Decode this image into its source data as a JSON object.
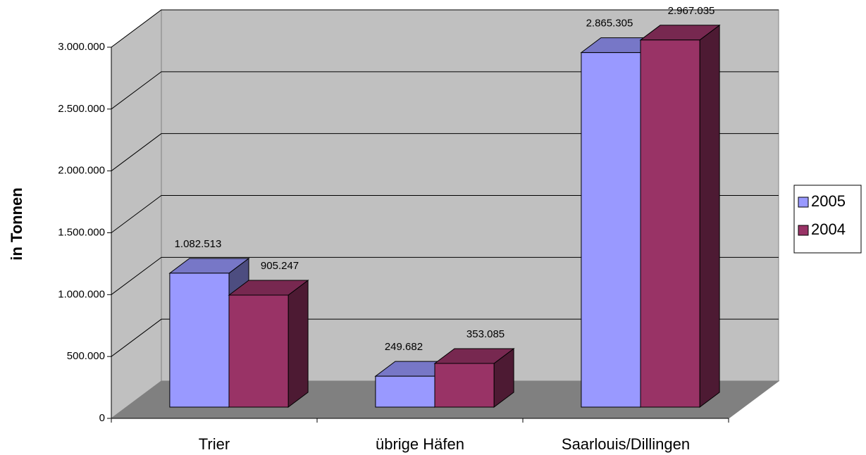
{
  "chart_data": {
    "type": "bar3d",
    "y_label": "in Tonnen",
    "categories": [
      "Trier",
      "übrige Häfen",
      "Saarlouis/Dillingen"
    ],
    "series": [
      {
        "name": "2005",
        "color": "#9999ff",
        "values": [
          1082513,
          249682,
          2865305
        ],
        "value_labels": [
          "1.082.513",
          "249.682",
          "2.865.305"
        ]
      },
      {
        "name": "2004",
        "color": "#993366",
        "values": [
          905247,
          353085,
          2967035
        ],
        "value_labels": [
          "905.247",
          "353.085",
          "2.967.035"
        ]
      }
    ],
    "ylim": [
      0,
      3000000
    ],
    "yticks": [
      0,
      {
        "value": 500000,
        "label": "500.000"
      },
      {
        "value": 1000000,
        "label": "1.000.000"
      },
      {
        "value": 1500000,
        "label": "1.500.000"
      },
      {
        "value": 2000000,
        "label": "2.000.000"
      },
      {
        "value": 2500000,
        "label": "2.500.000"
      },
      {
        "value": 3000000,
        "label": "3.000.000"
      }
    ],
    "grid": true,
    "legend": "right"
  }
}
